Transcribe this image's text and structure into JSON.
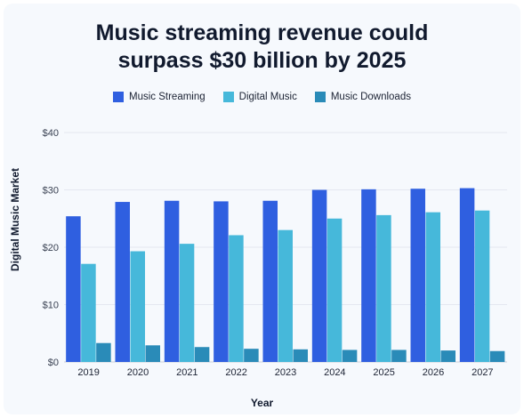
{
  "colors": {
    "music_streaming": "#2f5fe0",
    "digital_music": "#46b8da",
    "music_downloads": "#2a8bb8",
    "grid": "#e4e8f0",
    "text": "#111a2e"
  },
  "chart_data": {
    "type": "bar",
    "title_line1": "Music streaming revenue could",
    "title_line2": "surpass $30 billion by 2025",
    "xlabel": "Year",
    "ylabel": "Digital Music Market",
    "ylim": [
      0,
      40
    ],
    "yticks": [
      0,
      10,
      20,
      30,
      40
    ],
    "ytick_labels": [
      "$0",
      "$10",
      "$20",
      "$30",
      "$40"
    ],
    "grid": true,
    "legend_position": "top-center",
    "categories": [
      "2019",
      "2020",
      "2021",
      "2022",
      "2023",
      "2024",
      "2025",
      "2026",
      "2027"
    ],
    "series": [
      {
        "name": "Music Streaming",
        "values": [
          25.4,
          27.9,
          28.1,
          28.0,
          28.1,
          30.0,
          30.1,
          30.2,
          30.3
        ]
      },
      {
        "name": "Digital Music",
        "values": [
          17.1,
          19.3,
          20.6,
          22.1,
          23.0,
          25.0,
          25.6,
          26.1,
          26.4
        ]
      },
      {
        "name": "Music Downloads",
        "values": [
          3.3,
          2.9,
          2.6,
          2.3,
          2.2,
          2.1,
          2.1,
          2.0,
          1.9
        ]
      }
    ]
  }
}
